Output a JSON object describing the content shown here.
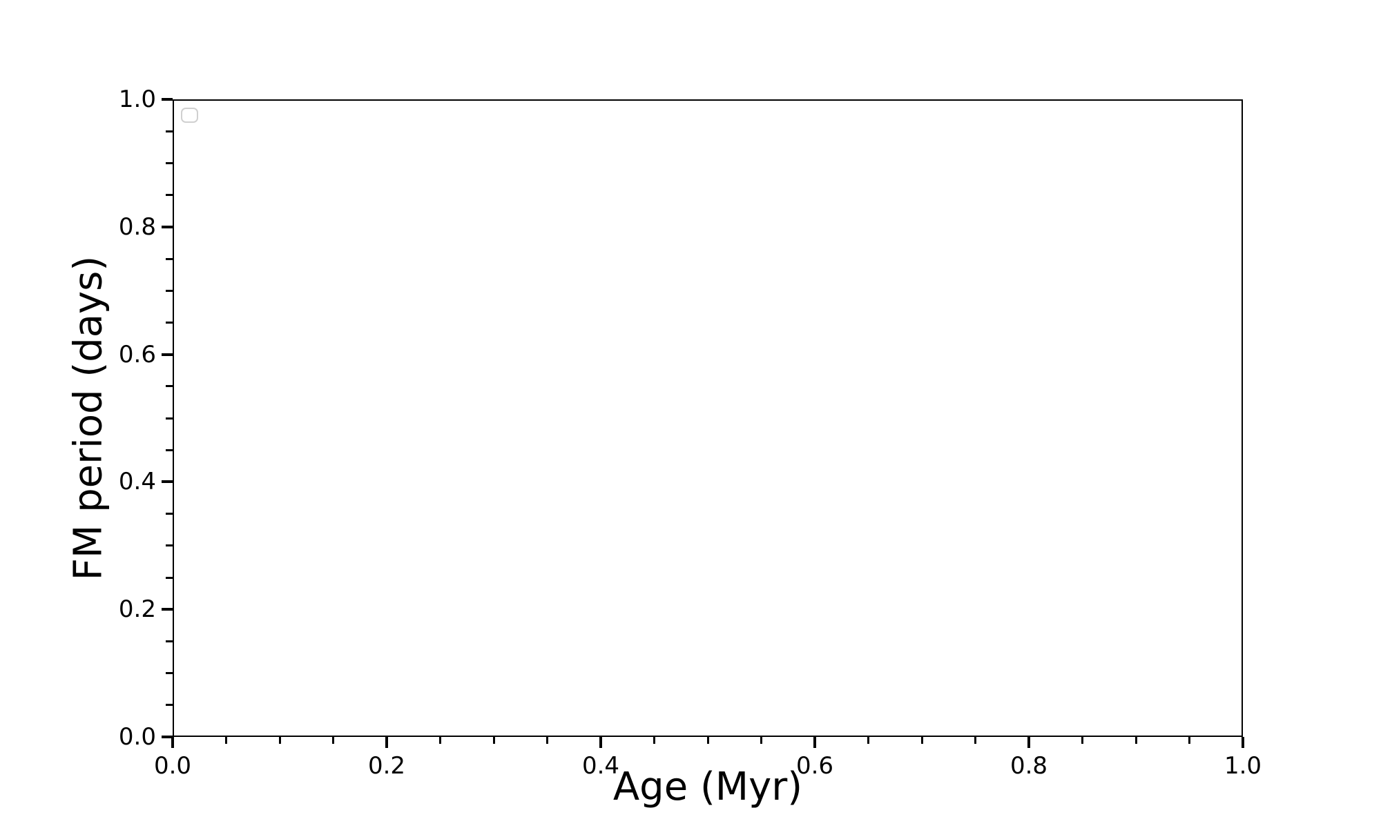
{
  "chart_data": {
    "type": "scatter",
    "title": "",
    "xlabel": "Age (Myr)",
    "ylabel": "FM period (days)",
    "xlim": [
      0.0,
      1.0
    ],
    "ylim": [
      0.0,
      1.0
    ],
    "x_major_ticks": [
      0.0,
      0.2,
      0.4,
      0.6,
      0.8,
      1.0
    ],
    "x_tick_labels": [
      "0.0",
      "0.2",
      "0.4",
      "0.6",
      "0.8",
      "1.0"
    ],
    "y_major_ticks": [
      0.0,
      0.2,
      0.4,
      0.6,
      0.8,
      1.0
    ],
    "y_tick_labels": [
      "0.0",
      "0.2",
      "0.4",
      "0.6",
      "0.8",
      "1.0"
    ],
    "x_minor_tick_interval": 0.05,
    "y_minor_tick_interval": 0.05,
    "grid": false,
    "series": [],
    "legend": {
      "visible": true,
      "entries": [],
      "location": "upper-left"
    },
    "colors": {
      "background": "#ffffff",
      "spine": "#000000",
      "tick": "#000000",
      "text": "#000000",
      "legend_border": "#d0d0d0"
    }
  }
}
